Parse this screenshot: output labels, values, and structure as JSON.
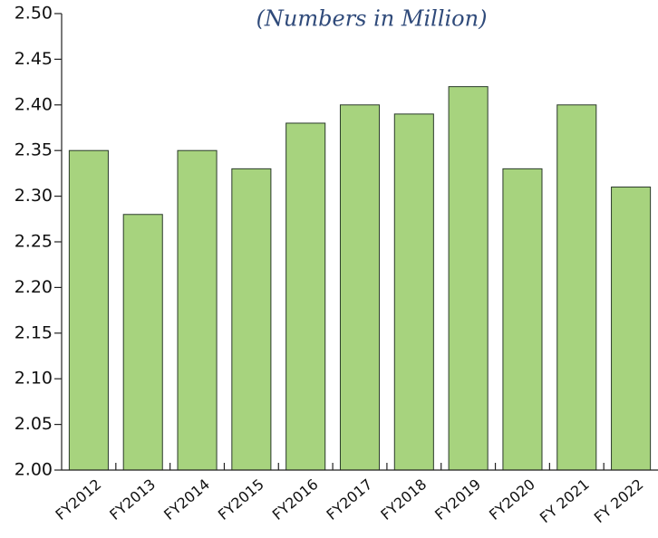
{
  "chart_data": {
    "type": "bar",
    "title": "(Numbers in Million)",
    "categories": [
      "FY2012",
      "FY2013",
      "FY2014",
      "FY2015",
      "FY2016",
      "FY2017",
      "FY2018",
      "FY2019",
      "FY2020",
      "FY 2021",
      "FY 2022"
    ],
    "values": [
      2.35,
      2.28,
      2.35,
      2.33,
      2.38,
      2.4,
      2.39,
      2.42,
      2.33,
      2.4,
      2.31
    ],
    "color": "#a7d37e",
    "ylim": [
      2.0,
      2.5
    ],
    "yticks": [
      {
        "value": 2.0,
        "label": "2.00"
      },
      2.05,
      {
        "value": 2.1,
        "label": "2.10"
      },
      2.15,
      {
        "value": 2.2,
        "label": "2.20"
      },
      2.25,
      {
        "value": 2.3,
        "label": "2.30"
      },
      2.35,
      {
        "value": 2.4,
        "label": "2.40"
      },
      2.45,
      {
        "value": 2.5,
        "label": "2.50"
      }
    ],
    "grid": false
  }
}
